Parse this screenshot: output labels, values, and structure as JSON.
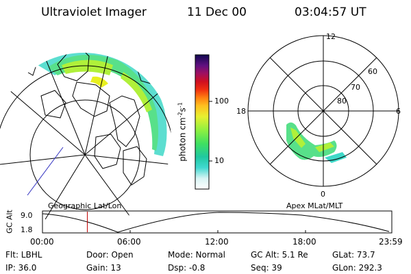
{
  "header": {
    "instrument": "Ultraviolet Imager",
    "date": "11 Dec 00",
    "time": "03:04:57 UT"
  },
  "colorbar": {
    "label": "photon cm",
    "label_sup1": "-2",
    "label_mid": "s",
    "label_sup2": "-1",
    "ticks": [
      "100",
      "10"
    ]
  },
  "left_panel": {
    "caption": "Geographic Lat/Lon"
  },
  "right_panel": {
    "caption": "Apex MLat/MLT",
    "hour_labels": [
      "12",
      "18",
      "6",
      "0"
    ],
    "lat_labels": [
      "60",
      "70",
      "80"
    ]
  },
  "timeline": {
    "ylabel": "GC Alt",
    "y_ticks": [
      "9.0",
      "1.8"
    ],
    "x_ticks": [
      "00:00",
      "06:00",
      "12:00",
      "18:00",
      "23:59"
    ],
    "marker_fraction": 0.1284
  },
  "footer": {
    "flt": "Flt: LBHL",
    "door": "Door: Open",
    "mode": "Mode: Normal",
    "gc_alt": "GC Alt: 5.1 Re",
    "glat": "GLat:  73.7",
    "ip": "IP: 36.0",
    "gain": "Gain: 13",
    "dsp": "Dsp:   -0.8",
    "seq": "Seq: 39",
    "glon": "GLon: 292.3"
  },
  "colors": {
    "aurora_outer": "#3fd8c8",
    "aurora_mid": "#58e08a",
    "aurora_core": "#b0f03a",
    "aurora_peak": "#e8f020",
    "marker": "#c00000"
  }
}
